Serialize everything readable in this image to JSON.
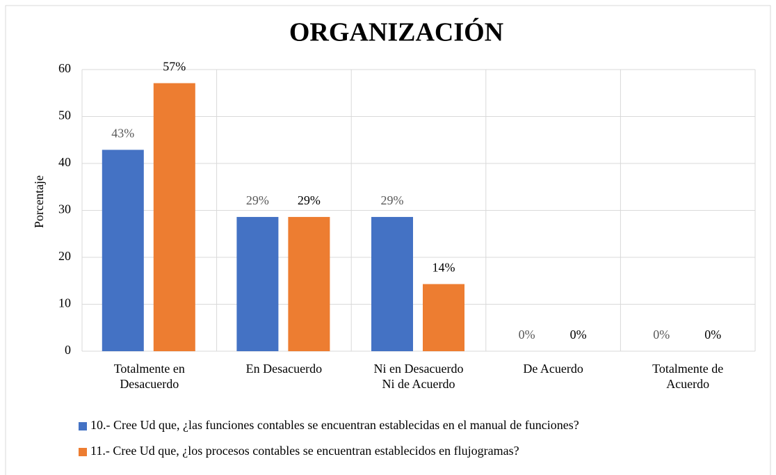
{
  "chart_data": {
    "type": "bar",
    "title": "ORGANIZACIÓN",
    "y_label": "Porcentaje",
    "categories": [
      "Totalmente en\nDesacuerdo",
      "En Desacuerdo",
      "Ni en Desacuerdo\nNi de Acuerdo",
      "De Acuerdo",
      "Totalmente de\nAcuerdo"
    ],
    "series": [
      {
        "name": "10.- Cree Ud que, ¿las funciones contables se encuentran establecidas en el manual de funciones?",
        "color": "#4472c4",
        "values": [
          42.9,
          28.6,
          28.6,
          0,
          0
        ],
        "value_labels": [
          "43%",
          "29%",
          "29%",
          "0%",
          "0%"
        ]
      },
      {
        "name": "11.- Cree Ud que, ¿los procesos contables se encuentran establecidos en flujogramas?",
        "color": "#ed7d31",
        "values": [
          57.1,
          28.6,
          14.3,
          0,
          0
        ],
        "value_labels": [
          "57%",
          "29%",
          "14%",
          "0%",
          "0%"
        ]
      }
    ],
    "ylim": [
      0,
      60
    ],
    "yticks": [
      0,
      10,
      20,
      30,
      40,
      50,
      60
    ],
    "grid": true,
    "legend": "bottom"
  }
}
